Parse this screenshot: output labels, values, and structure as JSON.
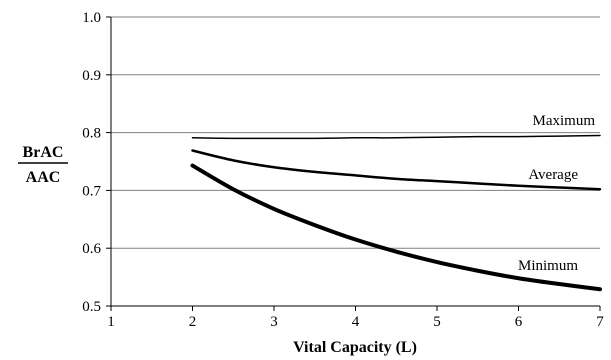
{
  "chart_data": {
    "type": "line",
    "xlabel": "Vital Capacity (L)",
    "ylabel_top": "BrAC",
    "ylabel_bottom": "AAC",
    "xlim": [
      1,
      7
    ],
    "ylim": [
      0.5,
      1.0
    ],
    "xticks": [
      "1",
      "2",
      "3",
      "4",
      "5",
      "6",
      "7"
    ],
    "yticks": [
      "0.5",
      "0.6",
      "0.7",
      "0.8",
      "0.9",
      "1.0"
    ],
    "grid": "horizontal",
    "legend": "none (series labeled inline)",
    "series": [
      {
        "name": "Maximum",
        "x": [
          2,
          2.5,
          3,
          3.5,
          4,
          4.5,
          5,
          5.5,
          6,
          6.5,
          7
        ],
        "values": [
          0.791,
          0.79,
          0.79,
          0.79,
          0.791,
          0.791,
          0.792,
          0.793,
          0.793,
          0.794,
          0.795
        ],
        "stroke_width": 1.5
      },
      {
        "name": "Average",
        "x": [
          2,
          2.5,
          3,
          3.5,
          4,
          4.5,
          5,
          5.5,
          6,
          6.5,
          7
        ],
        "values": [
          0.769,
          0.752,
          0.74,
          0.732,
          0.726,
          0.72,
          0.716,
          0.712,
          0.708,
          0.705,
          0.702
        ],
        "stroke_width": 2.5
      },
      {
        "name": "Minimum",
        "x": [
          2,
          2.5,
          3,
          3.5,
          4,
          4.5,
          5,
          5.5,
          6,
          6.5,
          7
        ],
        "values": [
          0.743,
          0.702,
          0.668,
          0.64,
          0.615,
          0.594,
          0.576,
          0.561,
          0.548,
          0.538,
          0.529
        ],
        "stroke_width": 4
      }
    ]
  }
}
